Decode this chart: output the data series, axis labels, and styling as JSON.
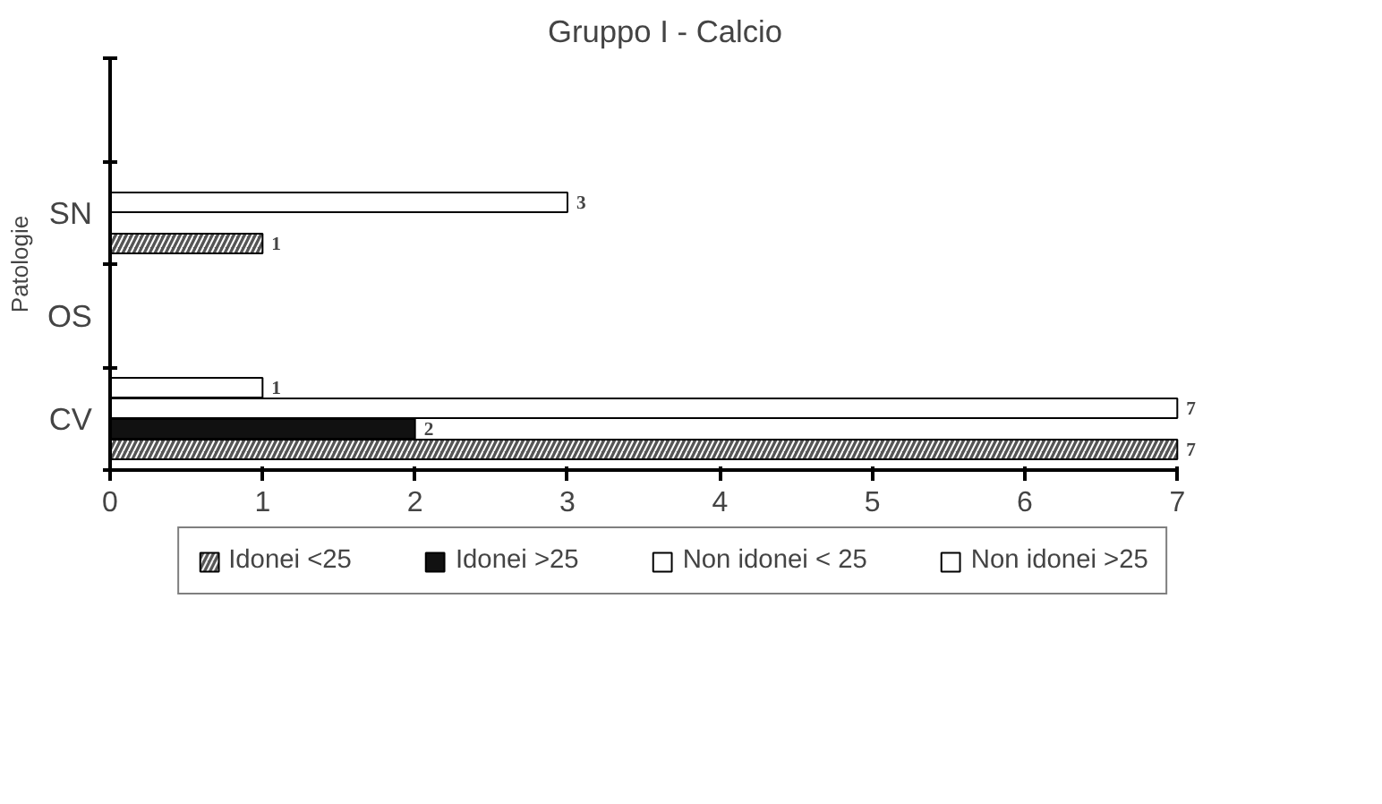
{
  "chart_data": {
    "type": "bar",
    "orientation": "horizontal",
    "title": "Gruppo I - Calcio",
    "ylabel": "Patologie",
    "categories": [
      null,
      "SN",
      "OS",
      "CV"
    ],
    "series": [
      {
        "name": "Idonei <25",
        "color": "#555555",
        "values": [
          null,
          1,
          null,
          7
        ]
      },
      {
        "name": "Idonei >25",
        "color": "#111111",
        "values": [
          null,
          null,
          null,
          2
        ]
      },
      {
        "name": "Non idonei < 25",
        "color": "#ffffff",
        "values": [
          null,
          3,
          null,
          7
        ]
      },
      {
        "name": "Non idonei >25",
        "color": "#ffffff",
        "values": [
          null,
          null,
          null,
          1
        ]
      }
    ],
    "xlim": [
      0,
      7
    ],
    "xticks": [
      0,
      1,
      2,
      3,
      4,
      5,
      6,
      7
    ],
    "data_labels": true,
    "grid": false,
    "legend": "bottom"
  }
}
